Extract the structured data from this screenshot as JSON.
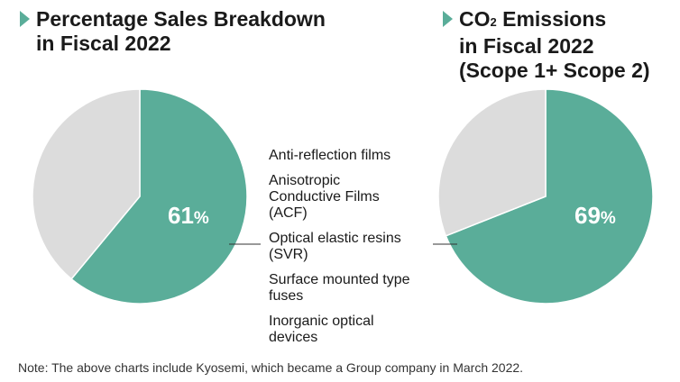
{
  "colors": {
    "accent": "#5aad99",
    "other": "#dcdcdc",
    "text": "#1a1a1a"
  },
  "chart_data": [
    {
      "type": "pie",
      "title": "Percentage Sales Breakdown in Fiscal 2022",
      "title_lines": [
        "Percentage Sales Breakdown",
        "in Fiscal 2022"
      ],
      "slices": [
        {
          "value": 61,
          "color": "#5aad99"
        },
        {
          "value": 39,
          "color": "#dcdcdc"
        }
      ],
      "label_value": "61",
      "label_unit": "%"
    },
    {
      "type": "pie",
      "title": "CO2 Emissions in Fiscal 2022 (Scope 1+ Scope 2)",
      "title_lines": [
        "CO",
        "2",
        " Emissions",
        "in Fiscal 2022",
        "(Scope 1+ Scope 2)"
      ],
      "slices": [
        {
          "value": 69,
          "color": "#5aad99"
        },
        {
          "value": 31,
          "color": "#dcdcdc"
        }
      ],
      "label_value": "69",
      "label_unit": "%"
    }
  ],
  "product_list": [
    "Anti-reflection films",
    "Anisotropic Conductive Films (ACF)",
    "Optical elastic resins (SVR)",
    "Surface mounted type fuses",
    "Inorganic optical devices"
  ],
  "note": "Note: The above charts include Kyosemi, which became a Group company in March 2022."
}
